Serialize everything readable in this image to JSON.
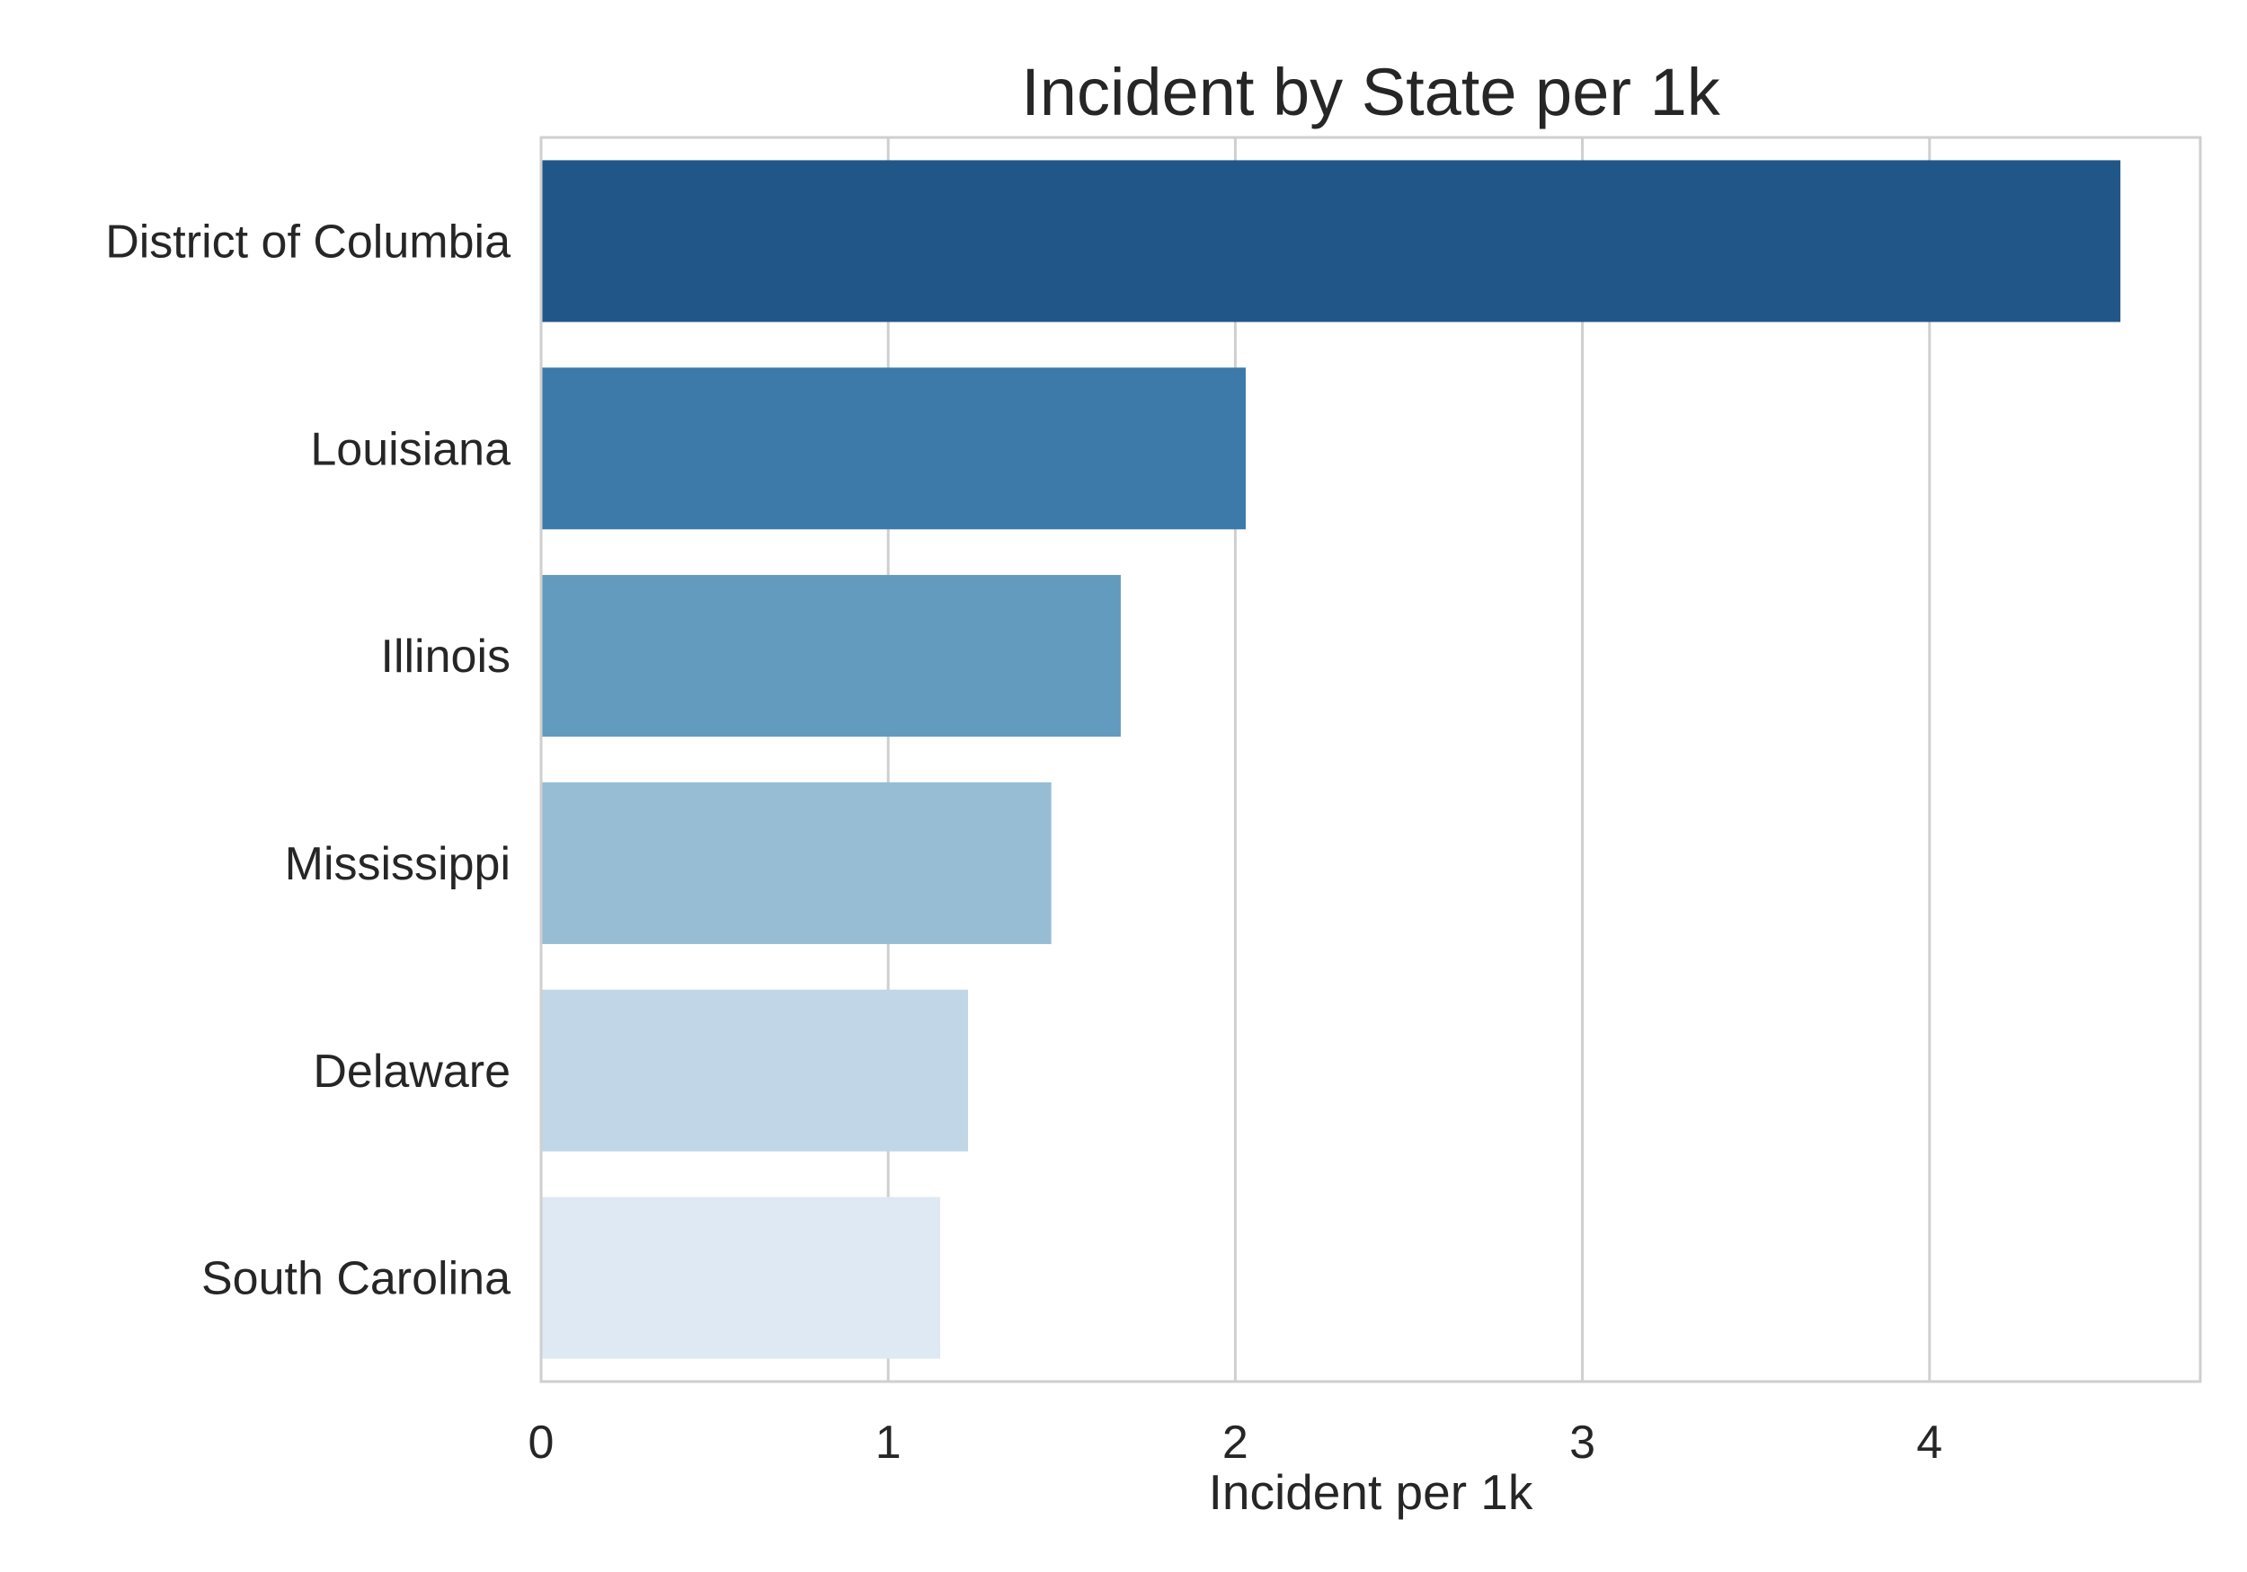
{
  "chart_data": {
    "type": "bar",
    "orientation": "horizontal",
    "title": "Incident by State per 1k",
    "xlabel": "Incident per 1k",
    "ylabel": "",
    "categories": [
      "District of Columbia",
      "Louisiana",
      "Illinois",
      "Mississippi",
      "Delaware",
      "South Carolina"
    ],
    "values": [
      4.55,
      2.03,
      1.67,
      1.47,
      1.23,
      1.15
    ],
    "xlim": [
      0,
      4.78
    ],
    "xticks": [
      "0",
      "1",
      "2",
      "3",
      "4"
    ],
    "grid": "vertical",
    "legend": "none",
    "colors": [
      "#215689",
      "#3e7aa9",
      "#639bbf",
      "#97bdd5",
      "#c1d6e7",
      "#dfe9f3"
    ],
    "gridColor": "#cfcfcf",
    "spineColor": "#cfcfcf"
  }
}
